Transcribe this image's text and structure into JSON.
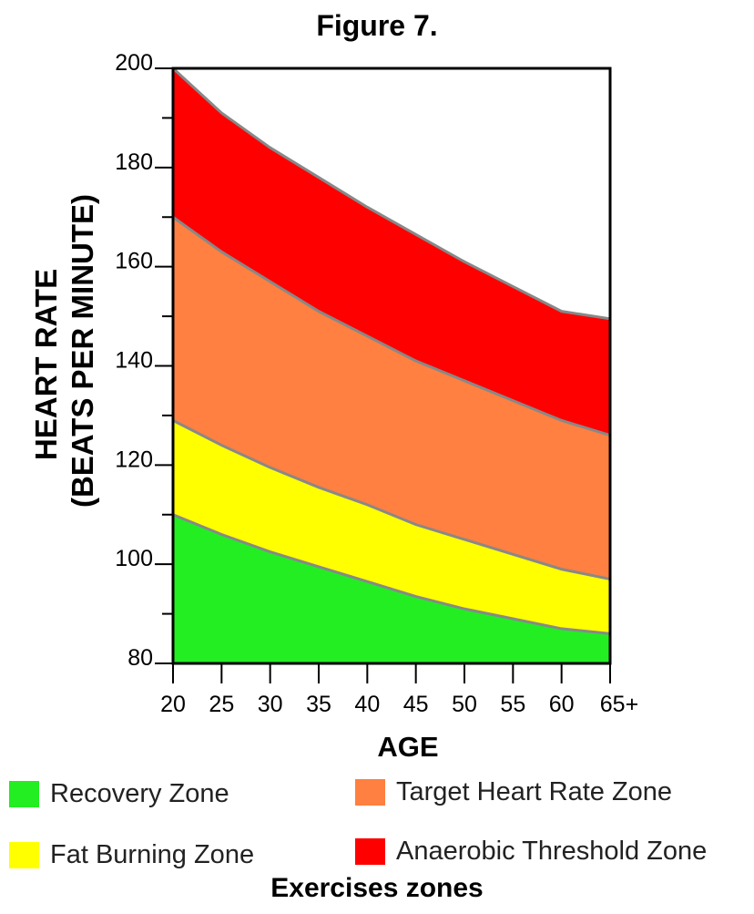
{
  "figure_label": "Figure 7.",
  "caption": "Exercises zones",
  "colors": {
    "recovery": "#22ee22",
    "fat_burning": "#ffff00",
    "target": "#ff8040",
    "anaerobic": "#ff0000",
    "boundary": "#888888"
  },
  "legend": [
    {
      "label": "Recovery Zone",
      "color": "#22ee22"
    },
    {
      "label": "Target Heart Rate Zone",
      "color": "#ff8040"
    },
    {
      "label": "Fat Burning Zone",
      "color": "#ffff00"
    },
    {
      "label": "Anaerobic Threshold Zone",
      "color": "#ff0000"
    }
  ],
  "chart_data": {
    "type": "area",
    "title": "Figure 7.",
    "xlabel": "AGE",
    "ylabel_line1": "HEART RATE",
    "ylabel_line2": "(BEATS PER MINUTE)",
    "xlim": [
      20,
      65
    ],
    "ylim": [
      80,
      200
    ],
    "x": [
      20,
      25,
      30,
      35,
      40,
      45,
      50,
      55,
      60,
      65
    ],
    "x_tick_labels": [
      "20",
      "25",
      "30",
      "35",
      "40",
      "45",
      "50",
      "55",
      "60",
      "65+"
    ],
    "y_ticks": [
      80,
      100,
      120,
      140,
      160,
      180,
      200
    ],
    "y_tick_labels": [
      "80",
      "100",
      "120",
      "140",
      "160",
      "180",
      "200"
    ],
    "boundaries": [
      {
        "name": "Recovery Zone",
        "values": [
          110,
          106,
          102.5,
          99.5,
          96.5,
          93.5,
          91,
          89,
          87,
          86
        ]
      },
      {
        "name": "Fat Burning Zone",
        "values": [
          129,
          124,
          119.5,
          115.5,
          112,
          108,
          105,
          102,
          99,
          97
        ]
      },
      {
        "name": "Target Heart Rate Zone",
        "values": [
          170,
          163,
          157,
          151,
          146,
          141,
          137,
          133,
          129,
          126
        ]
      },
      {
        "name": "Anaerobic Threshold Zone",
        "values": [
          200,
          191,
          184,
          178,
          172,
          166.5,
          161,
          156,
          151,
          149.5
        ]
      }
    ],
    "grid": false,
    "legend_position": "bottom"
  }
}
